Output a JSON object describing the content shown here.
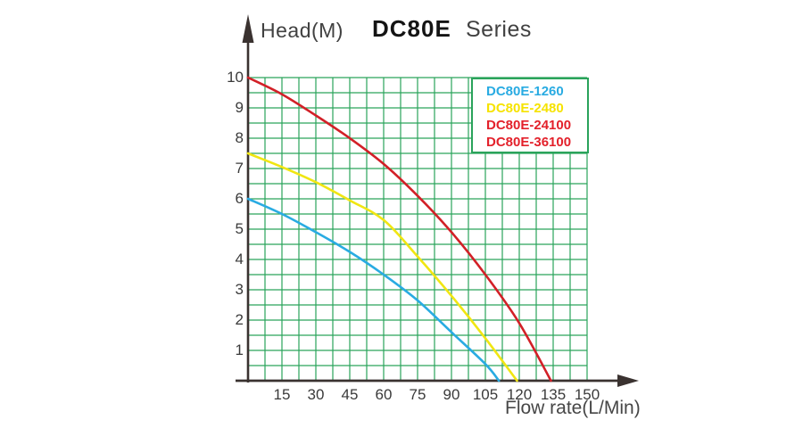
{
  "titles": {
    "y_axis_title": "Head(M)",
    "model": "DC80E",
    "series_word": "Series",
    "x_axis_label": "Flow rate(L/Min)"
  },
  "legend": {
    "items": [
      {
        "label": "DC80E-1260",
        "color": "#29abe2"
      },
      {
        "label": "DC80E-2480",
        "color": "#f6e300"
      },
      {
        "label": "DC80E-24100",
        "color": "#e3212b"
      },
      {
        "label": "DC80E-36100",
        "color": "#e3212b"
      }
    ]
  },
  "colors": {
    "grid": "#2aa35b",
    "axis": "#3a3230",
    "tick_text": "#3a3a3a"
  },
  "chart_data": {
    "type": "line",
    "title": "DC80E Series",
    "xlabel": "Flow rate(L/Min)",
    "ylabel": "Head(M)",
    "xlim": [
      0,
      150
    ],
    "ylim": [
      0,
      10
    ],
    "x_ticks": [
      15,
      30,
      45,
      60,
      75,
      90,
      105,
      120,
      135,
      150
    ],
    "y_ticks": [
      10,
      9,
      8,
      7,
      6,
      5,
      4,
      3,
      2,
      1
    ],
    "grid": "minor gridlines every 7.5 L/Min (x) and 0.5 M (y), green, legend top-right",
    "note": "DC80E-24100 and DC80E-36100 share the single visible red curve",
    "series": [
      {
        "name": "DC80E-1260",
        "color": "#29abe2",
        "points": [
          [
            0,
            6.0
          ],
          [
            15,
            5.5
          ],
          [
            30,
            4.9
          ],
          [
            45,
            4.25
          ],
          [
            60,
            3.5
          ],
          [
            75,
            2.65
          ],
          [
            90,
            1.6
          ],
          [
            105,
            0.55
          ],
          [
            111,
            0
          ]
        ]
      },
      {
        "name": "DC80E-2480",
        "color": "#f0e612",
        "points": [
          [
            0,
            7.5
          ],
          [
            15,
            7.05
          ],
          [
            30,
            6.55
          ],
          [
            45,
            5.95
          ],
          [
            60,
            5.3
          ],
          [
            75,
            4.1
          ],
          [
            90,
            2.8
          ],
          [
            105,
            1.4
          ],
          [
            119,
            0
          ]
        ]
      },
      {
        "name": "DC80E-24100 / DC80E-36100",
        "color": "#d22027",
        "points": [
          [
            0,
            10.0
          ],
          [
            15,
            9.45
          ],
          [
            30,
            8.75
          ],
          [
            45,
            8.0
          ],
          [
            60,
            7.15
          ],
          [
            75,
            6.1
          ],
          [
            90,
            4.9
          ],
          [
            105,
            3.5
          ],
          [
            120,
            1.9
          ],
          [
            134,
            0
          ]
        ]
      }
    ]
  }
}
